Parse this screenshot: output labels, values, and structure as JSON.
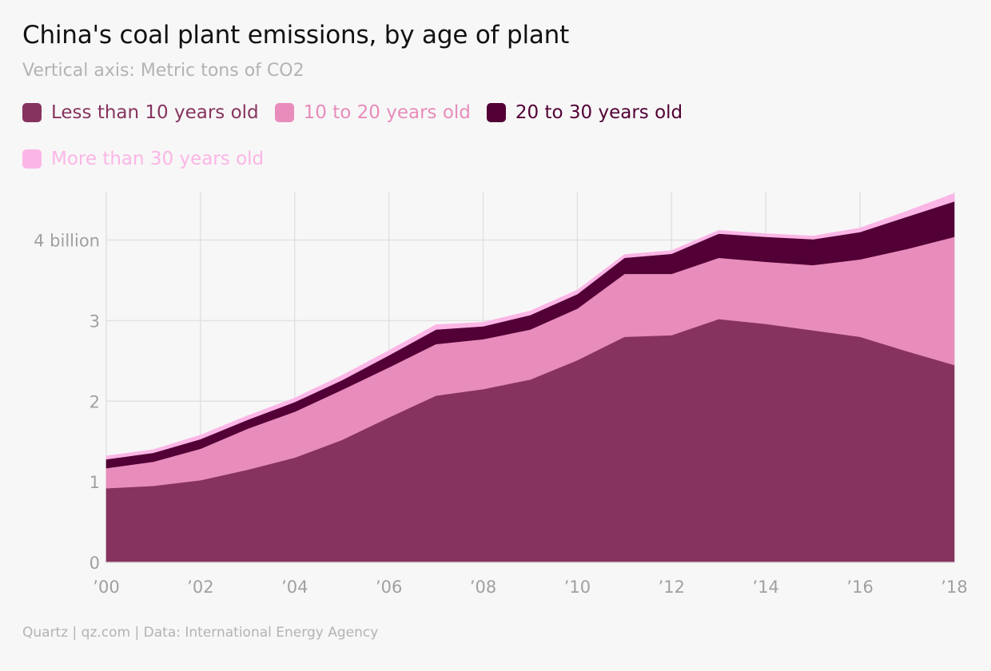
{
  "chart_data": {
    "type": "area",
    "title": "China's coal plant emissions, by age of plant",
    "subtitle": "Vertical axis: Metric tons of CO2",
    "stacked": true,
    "x": [
      2000,
      2001,
      2002,
      2003,
      2004,
      2005,
      2006,
      2007,
      2008,
      2009,
      2010,
      2011,
      2012,
      2013,
      2014,
      2015,
      2016,
      2017,
      2018
    ],
    "x_tick_values": [
      2000,
      2002,
      2004,
      2006,
      2008,
      2010,
      2012,
      2014,
      2016,
      2018
    ],
    "x_tick_labels": [
      "’00",
      "’02",
      "’04",
      "’06",
      "’08",
      "’10",
      "’12",
      "’14",
      "’16",
      "’18"
    ],
    "y_tick_values": [
      0,
      1,
      2,
      3,
      4
    ],
    "y_tick_labels": [
      "0",
      "1",
      "2",
      "3",
      "4 billion"
    ],
    "ylim": [
      0,
      4.6
    ],
    "grid": true,
    "legend_position": "top",
    "series": [
      {
        "name": "Less than 10 years old",
        "color": "#87335f",
        "values": [
          0.92,
          0.95,
          1.02,
          1.15,
          1.3,
          1.52,
          1.8,
          2.07,
          2.15,
          2.27,
          2.51,
          2.8,
          2.82,
          3.02,
          2.96,
          2.88,
          2.8,
          2.62,
          2.45
        ]
      },
      {
        "name": "10 to 20 years old",
        "color": "#e88cbc",
        "values": [
          0.25,
          0.3,
          0.39,
          0.51,
          0.57,
          0.62,
          0.62,
          0.64,
          0.62,
          0.62,
          0.64,
          0.78,
          0.76,
          0.76,
          0.77,
          0.81,
          0.96,
          1.27,
          1.59
        ]
      },
      {
        "name": "20 to 30 years old",
        "color": "#520035",
        "values": [
          0.11,
          0.11,
          0.12,
          0.11,
          0.12,
          0.12,
          0.15,
          0.18,
          0.16,
          0.18,
          0.18,
          0.2,
          0.25,
          0.3,
          0.31,
          0.32,
          0.34,
          0.4,
          0.44
        ]
      },
      {
        "name": "More than 30 years old",
        "color": "#fbb6e6",
        "values": [
          0.04,
          0.04,
          0.05,
          0.05,
          0.05,
          0.06,
          0.06,
          0.06,
          0.05,
          0.05,
          0.05,
          0.04,
          0.04,
          0.04,
          0.04,
          0.04,
          0.05,
          0.07,
          0.1
        ]
      }
    ]
  },
  "footer": "Quartz | qz.com | Data: International Energy Agency"
}
